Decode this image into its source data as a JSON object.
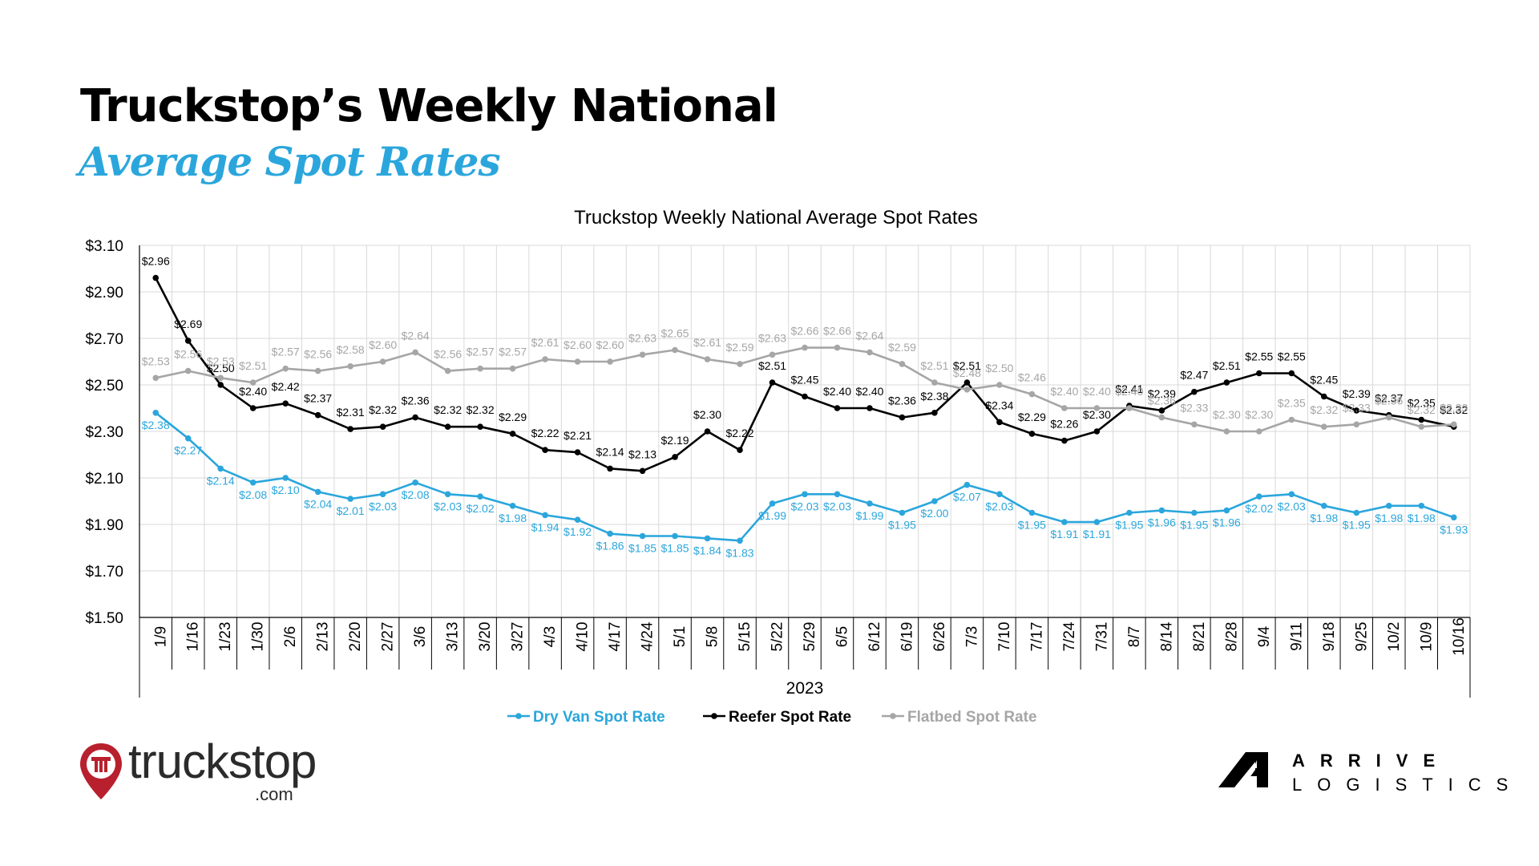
{
  "slide": {
    "title": "Truckstop’s Weekly National",
    "subtitle": "Average Spot Rates"
  },
  "logos": {
    "left": {
      "word": "truckstop",
      "sub": ".com"
    },
    "right": {
      "line1": "ARRIVE",
      "line2": "LOGISTICS"
    }
  },
  "colors": {
    "dry_van": "#2ba6dc",
    "reefer": "#000000",
    "flatbed": "#a6a6a6",
    "grid": "#d9d9d9",
    "title_accent": "#2ba6dc"
  },
  "chart_data": {
    "type": "line",
    "title": "Truckstop Weekly National Average Spot Rates",
    "xlabel": "2023",
    "ylabel": "",
    "categories": [
      "1/9",
      "1/16",
      "1/23",
      "1/30",
      "2/6",
      "2/13",
      "2/20",
      "2/27",
      "3/6",
      "3/13",
      "3/20",
      "3/27",
      "4/3",
      "4/10",
      "4/17",
      "4/24",
      "5/1",
      "5/8",
      "5/15",
      "5/22",
      "5/29",
      "6/5",
      "6/12",
      "6/19",
      "6/26",
      "7/3",
      "7/10",
      "7/17",
      "7/24",
      "7/31",
      "8/7",
      "8/14",
      "8/21",
      "8/28",
      "9/4",
      "9/11",
      "9/18",
      "9/25",
      "10/2",
      "10/9",
      "10/16"
    ],
    "y_ticks": [
      "$1.50",
      "$1.70",
      "$1.90",
      "$2.10",
      "$2.30",
      "$2.50",
      "$2.70",
      "$2.90",
      "$3.10"
    ],
    "ylim": [
      1.5,
      3.1
    ],
    "grid": true,
    "legend_position": "bottom",
    "series": [
      {
        "name": "Dry Van Spot Rate",
        "color": "#2ba6dc",
        "values": [
          2.38,
          2.27,
          2.14,
          2.08,
          2.1,
          2.04,
          2.01,
          2.03,
          2.08,
          2.03,
          2.02,
          1.98,
          1.94,
          1.92,
          1.86,
          1.85,
          1.85,
          1.84,
          1.83,
          1.99,
          2.03,
          2.03,
          1.99,
          1.95,
          2.0,
          2.07,
          2.03,
          1.95,
          1.91,
          1.91,
          1.95,
          1.96,
          1.95,
          1.96,
          2.02,
          2.03,
          1.98,
          1.95,
          1.98,
          1.98,
          1.93
        ],
        "labels": [
          "$2.38",
          "$2.27",
          "$2.14",
          "$2.08",
          "$2.10",
          "$2.04",
          "$2.01",
          "$2.03",
          "$2.08",
          "$2.03",
          "$2.02",
          "$1.98",
          "$1.94",
          "$1.92",
          "$1.86",
          "$1.85",
          "$1.85",
          "$1.84",
          "$1.83",
          "$1.99",
          "$2.03",
          "$2.03",
          "$1.99",
          "$1.95",
          "$2.00",
          "$2.07",
          "$2.03",
          "$1.95",
          "$1.91",
          "$1.91",
          "$1.95",
          "$1.96",
          "$1.95",
          "$1.96",
          "$2.02",
          "$2.03",
          "$1.98",
          "$1.95",
          "$1.98",
          "$1.98",
          "$1.93"
        ]
      },
      {
        "name": "Reefer Spot Rate",
        "color": "#000000",
        "values": [
          2.96,
          2.69,
          2.5,
          2.4,
          2.42,
          2.37,
          2.31,
          2.32,
          2.36,
          2.32,
          2.32,
          2.29,
          2.22,
          2.21,
          2.14,
          2.13,
          2.19,
          2.3,
          2.22,
          2.51,
          2.45,
          2.4,
          2.4,
          2.36,
          2.38,
          2.51,
          2.34,
          2.29,
          2.26,
          2.3,
          2.41,
          2.39,
          2.47,
          2.51,
          2.55,
          2.55,
          2.45,
          2.39,
          2.37,
          2.35,
          2.32
        ],
        "labels": [
          "$2.96",
          "$2.69",
          "$2.50",
          "$2.40",
          "$2.42",
          "$2.37",
          "$2.31",
          "$2.32",
          "$2.36",
          "$2.32",
          "$2.32",
          "$2.29",
          "$2.22",
          "$2.21",
          "$2.14",
          "$2.13",
          "$2.19",
          "$2.30",
          "$2.22",
          "$2.51",
          "$2.45",
          "$2.40",
          "$2.40",
          "$2.36",
          "$2.38",
          "$2.51",
          "$2.34",
          "$2.29",
          "$2.26",
          "$2.30",
          "$2.41",
          "$2.39",
          "$2.47",
          "$2.51",
          "$2.55",
          "$2.55",
          "$2.45",
          "$2.39",
          "$2.37",
          "$2.35",
          "$2.32"
        ]
      },
      {
        "name": "Flatbed Spot Rate",
        "color": "#a6a6a6",
        "values": [
          2.53,
          2.56,
          2.53,
          2.51,
          2.57,
          2.56,
          2.58,
          2.6,
          2.64,
          2.56,
          2.57,
          2.57,
          2.61,
          2.6,
          2.6,
          2.63,
          2.65,
          2.61,
          2.59,
          2.63,
          2.66,
          2.66,
          2.64,
          2.59,
          2.51,
          2.48,
          2.5,
          2.46,
          2.4,
          2.4,
          2.4,
          2.36,
          2.33,
          2.3,
          2.3,
          2.35,
          2.32,
          2.33,
          2.36,
          2.32,
          2.33
        ],
        "labels": [
          "$2.53",
          "$2.56",
          "$2.53",
          "$2.51",
          "$2.57",
          "$2.56",
          "$2.58",
          "$2.60",
          "$2.64",
          "$2.56",
          "$2.57",
          "$2.57",
          "$2.61",
          "$2.60",
          "$2.60",
          "$2.63",
          "$2.65",
          "$2.61",
          "$2.59",
          "$2.63",
          "$2.66",
          "$2.66",
          "$2.64",
          "$2.59",
          "$2.51",
          "$2.48",
          "$2.50",
          "$2.46",
          "$2.40",
          "$2.40",
          "$2.40",
          "$2.36",
          "$2.33",
          "$2.30",
          "$2.30",
          "$2.35",
          "$2.32",
          "$2.33",
          "$2.36",
          "$2.32",
          "$2.33"
        ]
      }
    ]
  }
}
